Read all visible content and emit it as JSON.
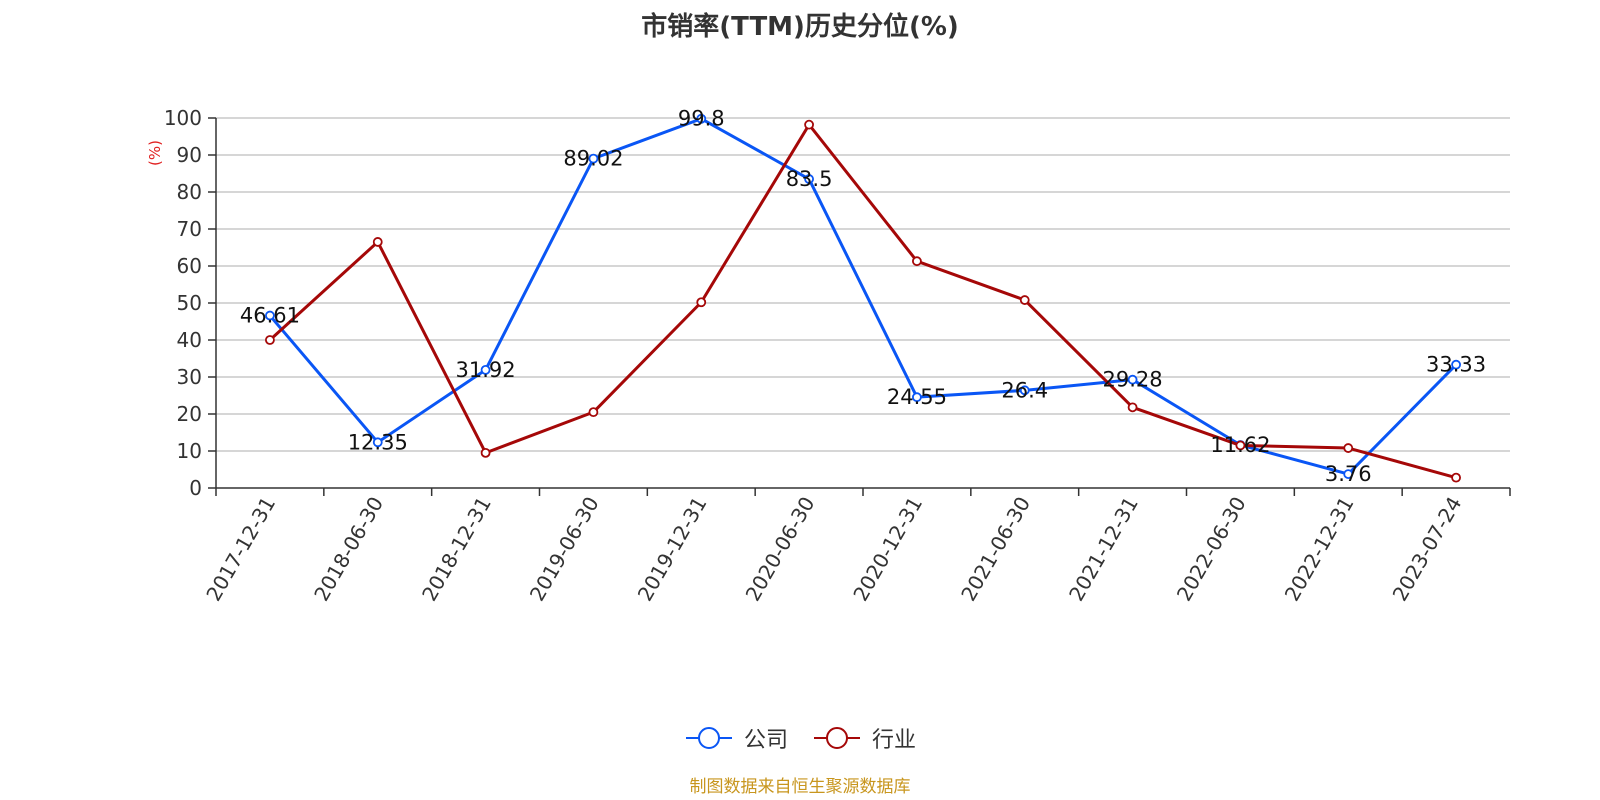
{
  "chart_data": {
    "type": "line",
    "title": "市销率(TTM)历史分位(%)",
    "ylabel": "(%)",
    "ylim": [
      0,
      100
    ],
    "yticks": [
      0,
      10,
      20,
      30,
      40,
      50,
      60,
      70,
      80,
      90,
      100
    ],
    "categories": [
      "2017-12-31",
      "2018-06-30",
      "2018-12-31",
      "2019-06-30",
      "2019-12-31",
      "2020-06-30",
      "2020-12-31",
      "2021-06-30",
      "2021-12-31",
      "2022-06-30",
      "2022-12-31",
      "2023-07-24"
    ],
    "grid": true,
    "legend_position": "bottom",
    "series": [
      {
        "name": "公司",
        "color": "#0a56f5",
        "values": [
          46.61,
          12.35,
          31.92,
          89.02,
          99.8,
          83.5,
          24.55,
          26.4,
          29.28,
          11.62,
          3.76,
          33.33
        ],
        "labels": [
          "46.61",
          "12.35",
          "31.92",
          "89.02",
          "99.8",
          "83.5",
          "24.55",
          "26.4",
          "29.28",
          "11.62",
          "3.76",
          "33.33"
        ]
      },
      {
        "name": "行业",
        "color": "#a50808",
        "values": [
          40,
          66.5,
          9.5,
          20.5,
          50.2,
          98.2,
          61.3,
          50.8,
          21.8,
          11.5,
          10.8,
          2.8
        ]
      }
    ]
  },
  "footer": {
    "source": "制图数据来自恒生聚源数据库"
  }
}
